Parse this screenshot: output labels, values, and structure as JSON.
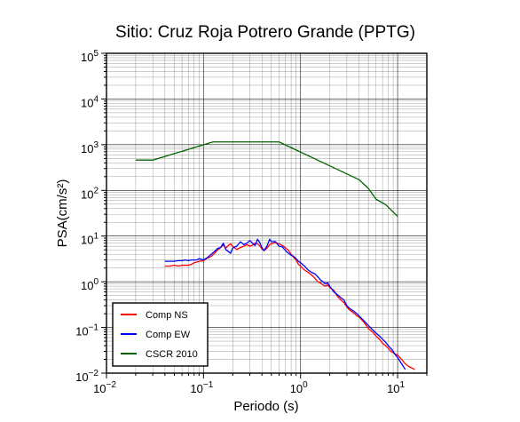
{
  "chart_data": {
    "type": "line",
    "title": "Sitio: Cruz Roja Potrero Grande (PPTG)",
    "xlabel": "Periodo (s)",
    "ylabel": "PSA(cm/s²)",
    "xscale": "log",
    "yscale": "log",
    "xlim": [
      0.01,
      20
    ],
    "ylim": [
      0.01,
      100000
    ],
    "grid": true,
    "legend_position": "bottom-left",
    "x_ticks": [
      {
        "base": "10",
        "exp": "−2"
      },
      {
        "base": "10",
        "exp": "−1"
      },
      {
        "base": "10",
        "exp": "0"
      },
      {
        "base": "10",
        "exp": "1"
      }
    ],
    "y_ticks": [
      {
        "base": "10",
        "exp": "−2"
      },
      {
        "base": "10",
        "exp": "−1"
      },
      {
        "base": "10",
        "exp": "0"
      },
      {
        "base": "10",
        "exp": "1"
      },
      {
        "base": "10",
        "exp": "2"
      },
      {
        "base": "10",
        "exp": "3"
      },
      {
        "base": "10",
        "exp": "4"
      },
      {
        "base": "10",
        "exp": "5"
      }
    ],
    "series": [
      {
        "name": "Comp NS",
        "color": "#ff0000",
        "x": [
          0.04,
          0.045,
          0.05,
          0.055,
          0.06,
          0.065,
          0.07,
          0.075,
          0.08,
          0.085,
          0.09,
          0.1,
          0.11,
          0.12,
          0.13,
          0.14,
          0.15,
          0.16,
          0.17,
          0.18,
          0.19,
          0.2,
          0.22,
          0.24,
          0.26,
          0.28,
          0.3,
          0.32,
          0.34,
          0.36,
          0.38,
          0.4,
          0.42,
          0.45,
          0.48,
          0.5,
          0.55,
          0.6,
          0.65,
          0.7,
          0.75,
          0.8,
          0.85,
          0.9,
          0.95,
          1.0,
          1.1,
          1.2,
          1.3,
          1.4,
          1.5,
          1.6,
          1.7,
          1.8,
          1.9,
          2.0,
          2.2,
          2.4,
          2.6,
          2.8,
          3.0,
          3.2,
          3.4,
          3.6,
          3.8,
          4.0,
          4.5,
          5.0,
          5.5,
          6.0,
          6.5,
          7.0,
          7.5,
          8.0,
          8.5,
          9.0,
          9.5,
          10.0,
          11.0,
          12.0,
          13.0,
          14.0,
          15.0
        ],
        "y": [
          2.2,
          2.2,
          2.3,
          2.2,
          2.3,
          2.3,
          2.3,
          2.4,
          2.6,
          2.7,
          2.8,
          2.9,
          3.3,
          3.6,
          4.2,
          5.0,
          5.6,
          6.3,
          5.5,
          6.2,
          6.8,
          5.9,
          5.1,
          5.6,
          6.0,
          6.5,
          6.0,
          6.3,
          7.0,
          6.8,
          6.1,
          5.2,
          4.8,
          5.4,
          6.5,
          6.8,
          7.2,
          6.8,
          6.2,
          5.5,
          4.9,
          4.0,
          3.4,
          3.0,
          2.4,
          2.2,
          1.8,
          1.6,
          1.4,
          1.2,
          1.0,
          0.95,
          0.85,
          0.8,
          0.85,
          0.75,
          0.65,
          0.48,
          0.4,
          0.35,
          0.28,
          0.24,
          0.22,
          0.2,
          0.18,
          0.17,
          0.13,
          0.095,
          0.08,
          0.065,
          0.055,
          0.045,
          0.04,
          0.035,
          0.03,
          0.028,
          0.026,
          0.025,
          0.02,
          0.016,
          0.014,
          0.013,
          0.012
        ]
      },
      {
        "name": "Comp EW",
        "color": "#0000ff",
        "x": [
          0.04,
          0.045,
          0.05,
          0.055,
          0.06,
          0.065,
          0.07,
          0.075,
          0.08,
          0.085,
          0.09,
          0.1,
          0.11,
          0.12,
          0.13,
          0.14,
          0.15,
          0.16,
          0.17,
          0.18,
          0.19,
          0.2,
          0.22,
          0.24,
          0.26,
          0.28,
          0.3,
          0.32,
          0.34,
          0.36,
          0.38,
          0.4,
          0.42,
          0.45,
          0.48,
          0.5,
          0.55,
          0.6,
          0.65,
          0.7,
          0.75,
          0.8,
          0.85,
          0.9,
          0.95,
          1.0,
          1.1,
          1.2,
          1.3,
          1.4,
          1.5,
          1.6,
          1.7,
          1.8,
          1.9,
          2.0,
          2.2,
          2.4,
          2.6,
          2.8,
          3.0,
          3.2,
          3.4,
          3.6,
          3.8,
          4.0,
          4.5,
          5.0,
          5.5,
          6.0,
          6.5,
          7.0,
          7.5,
          8.0,
          8.5,
          9.0,
          9.5,
          10.0,
          11.0,
          12.0
        ],
        "y": [
          2.8,
          2.8,
          2.8,
          2.9,
          2.9,
          3.0,
          2.9,
          3.0,
          3.0,
          3.0,
          3.2,
          3.0,
          3.4,
          4.0,
          4.6,
          5.4,
          5.6,
          7.0,
          5.0,
          4.6,
          4.2,
          5.5,
          6.0,
          7.5,
          6.5,
          7.0,
          8.0,
          7.0,
          6.2,
          8.5,
          7.2,
          5.6,
          4.8,
          6.0,
          8.5,
          7.5,
          7.6,
          6.0,
          5.8,
          4.8,
          4.2,
          3.8,
          3.6,
          3.2,
          2.8,
          2.6,
          2.2,
          1.8,
          1.6,
          1.5,
          1.3,
          1.1,
          1.0,
          0.9,
          0.95,
          0.8,
          0.6,
          0.52,
          0.45,
          0.4,
          0.3,
          0.26,
          0.24,
          0.22,
          0.2,
          0.18,
          0.14,
          0.11,
          0.09,
          0.075,
          0.065,
          0.055,
          0.048,
          0.04,
          0.035,
          0.03,
          0.025,
          0.022,
          0.016,
          0.012
        ]
      },
      {
        "name": "CSCR 2010",
        "color": "#006400",
        "x": [
          0.02,
          0.03,
          0.125,
          0.6,
          4.0,
          5.0,
          6.0,
          7.5,
          10.0
        ],
        "y": [
          460,
          460,
          1150,
          1150,
          172,
          110,
          64,
          49,
          27
        ]
      }
    ]
  }
}
